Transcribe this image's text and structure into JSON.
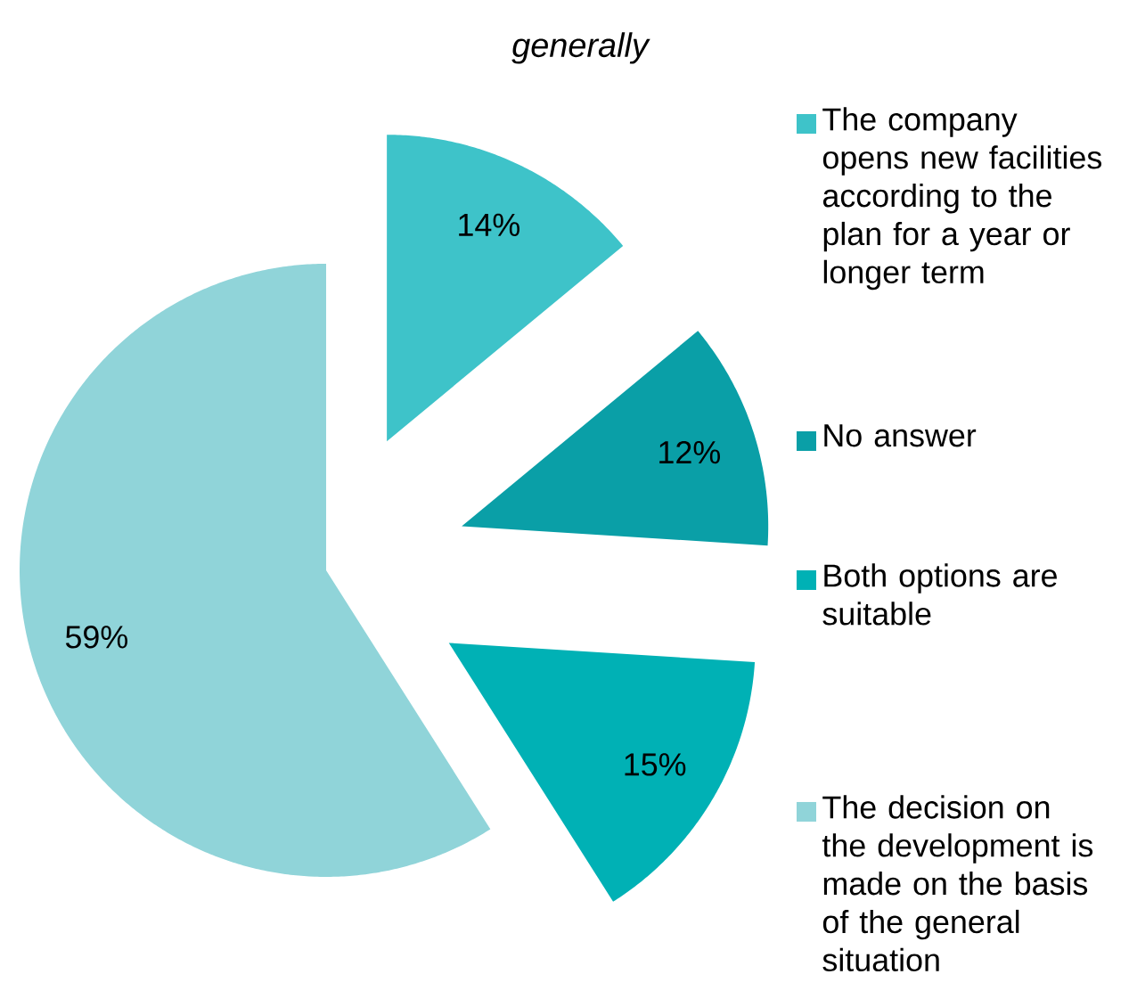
{
  "chart_data": {
    "type": "pie",
    "title": "*generally*",
    "categories": [
      "The company opens new facilities according to the plan for a year or longer term",
      "No answer",
      "Both options are suitable",
      "The decision on the development is made on the basis of the general situation"
    ],
    "values": [
      14,
      12,
      15,
      59
    ],
    "value_labels": [
      "14%",
      "12%",
      "15%",
      "59%"
    ],
    "colors": [
      "#3ec3c9",
      "#0a9fa7",
      "#00b1b5",
      "#90d4d9"
    ],
    "legend": "right"
  }
}
